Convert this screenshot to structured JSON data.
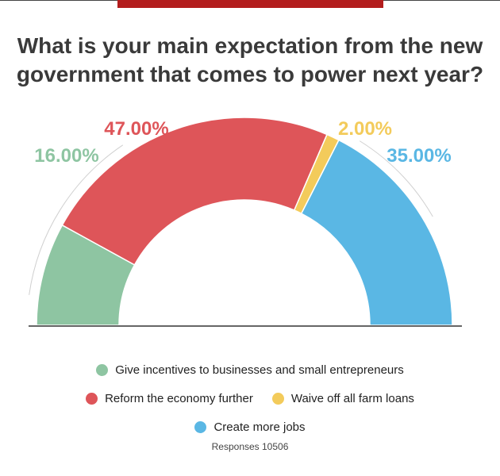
{
  "title_lines": [
    "What is your main expectation from the new",
    "government that comes to power next year?"
  ],
  "footer": "Responses 10506",
  "colors": {
    "top_bar": "#b31d1d",
    "incentives": "#8ec5a2",
    "reform": "#de5559",
    "farm": "#f3cb5b",
    "jobs": "#5ab7e4",
    "baseline": "#333333"
  },
  "chart_data": {
    "type": "pie",
    "variant": "semicircle-donut",
    "title": "What is your main expectation from the new government that comes to power next year?",
    "unit": "%",
    "slices": [
      {
        "name": "Give incentives to businesses and small entrepreneurs",
        "value": 16.0,
        "label": "16.00%",
        "color": "#8ec5a2"
      },
      {
        "name": "Reform the economy further",
        "value": 47.0,
        "label": "47.00%",
        "color": "#de5559"
      },
      {
        "name": "Waive off all farm loans",
        "value": 2.0,
        "label": "2.00%",
        "color": "#f3cb5b"
      },
      {
        "name": "Create more jobs",
        "value": 35.0,
        "label": "35.00%",
        "color": "#5ab7e4"
      }
    ],
    "legend_position": "bottom"
  }
}
